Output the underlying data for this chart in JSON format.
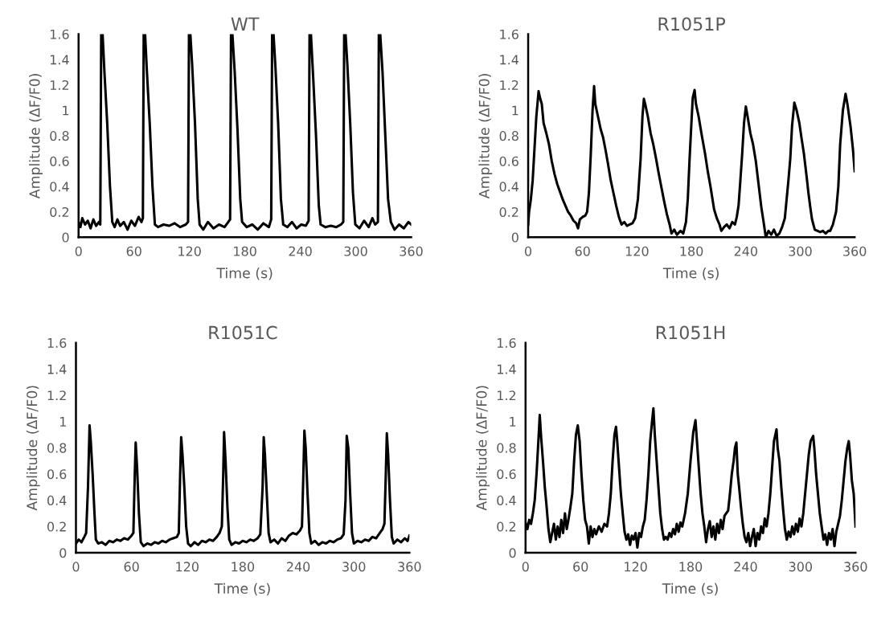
{
  "chart_data": [
    {
      "type": "line",
      "title": "WT",
      "xlabel": "Time (s)",
      "ylabel": "Amplitude (ΔF/F0)",
      "xlim": [
        0,
        360
      ],
      "xticks": [
        0,
        60,
        120,
        180,
        240,
        300,
        360
      ],
      "ylim": [
        0,
        1.6
      ],
      "yticks": [
        0,
        0.2,
        0.4,
        0.6,
        0.8,
        1,
        1.2,
        1.4,
        1.6
      ],
      "series": [
        {
          "color": "#000000",
          "x": [
            0,
            2,
            4,
            7,
            10,
            13,
            16,
            19,
            22,
            23.5,
            24.5,
            26,
            28,
            31,
            34,
            36.5,
            39,
            42,
            45,
            49,
            53,
            57,
            61,
            65,
            68,
            69.6,
            70.5,
            72,
            74,
            77,
            80,
            82.6,
            86,
            92,
            98,
            104,
            110,
            116,
            118.5,
            119.5,
            121,
            123,
            126,
            129,
            131,
            135,
            140,
            146,
            152,
            158,
            162,
            164,
            165,
            166.5,
            169,
            172,
            175,
            177,
            182,
            188,
            194,
            200,
            206,
            208.5,
            209.5,
            211,
            213,
            216,
            219,
            221.5,
            226,
            231,
            236,
            241,
            246,
            249,
            250,
            251.5,
            254,
            257,
            260,
            262,
            267,
            273,
            279,
            284,
            286.5,
            287.5,
            289,
            291,
            294,
            297,
            299.5,
            304,
            309,
            314,
            318,
            321,
            324,
            325,
            326.5,
            329,
            332,
            335,
            338,
            342,
            347,
            352,
            357,
            360
          ],
          "values": [
            0.12,
            0.08,
            0.15,
            0.1,
            0.13,
            0.07,
            0.14,
            0.09,
            0.12,
            0.1,
            1.6,
            1.6,
            1.3,
            0.9,
            0.4,
            0.12,
            0.08,
            0.14,
            0.09,
            0.12,
            0.06,
            0.13,
            0.09,
            0.16,
            0.12,
            0.15,
            1.6,
            1.6,
            1.3,
            0.9,
            0.4,
            0.1,
            0.08,
            0.1,
            0.09,
            0.11,
            0.08,
            0.1,
            0.12,
            1.6,
            1.6,
            1.35,
            0.9,
            0.3,
            0.1,
            0.06,
            0.12,
            0.07,
            0.1,
            0.08,
            0.12,
            0.14,
            1.6,
            1.6,
            1.3,
            0.85,
            0.3,
            0.12,
            0.08,
            0.1,
            0.06,
            0.11,
            0.08,
            0.14,
            1.6,
            1.6,
            1.35,
            0.9,
            0.3,
            0.1,
            0.08,
            0.12,
            0.07,
            0.1,
            0.09,
            0.13,
            1.6,
            1.6,
            1.25,
            0.8,
            0.25,
            0.1,
            0.08,
            0.09,
            0.08,
            0.1,
            0.12,
            1.6,
            1.6,
            1.35,
            0.9,
            0.35,
            0.1,
            0.07,
            0.13,
            0.08,
            0.15,
            0.1,
            0.12,
            1.6,
            1.6,
            1.3,
            0.8,
            0.3,
            0.12,
            0.06,
            0.1,
            0.07,
            0.12,
            0.1
          ]
        }
      ]
    },
    {
      "type": "line",
      "title": "R1051P",
      "xlabel": "Time (s)",
      "ylabel": "Amplitude (ΔF/F0)",
      "xlim": [
        0,
        360
      ],
      "xticks": [
        0,
        60,
        120,
        180,
        240,
        300,
        360
      ],
      "ylim": [
        0,
        1.6
      ],
      "yticks": [
        0,
        0.2,
        0.4,
        0.6,
        0.8,
        1,
        1.2,
        1.4,
        1.6
      ],
      "series": [
        {
          "color": "#000000",
          "x": [
            0,
            1,
            3,
            5,
            7,
            9,
            11.5,
            13,
            15,
            17,
            20,
            23,
            26,
            29,
            32,
            35.5,
            38,
            41,
            44,
            47,
            50,
            53,
            55,
            57,
            60,
            63,
            65,
            67,
            69,
            71,
            72.7,
            74,
            77,
            80,
            82.5,
            85,
            88,
            91,
            94,
            97,
            100,
            103,
            106,
            109,
            112,
            115,
            118,
            121,
            124,
            126,
            127.6,
            129,
            132,
            135,
            138,
            141,
            144,
            147,
            150,
            153,
            156,
            158,
            161,
            164,
            168,
            171,
            174,
            176,
            178,
            180,
            181.5,
            183.5,
            185,
            188,
            191,
            195,
            198,
            201,
            205,
            208,
            211,
            213,
            216,
            219,
            222,
            225,
            228,
            230,
            232,
            234,
            236,
            238,
            240,
            242,
            245,
            248,
            251,
            254,
            257,
            260,
            262,
            265,
            268,
            271,
            274,
            277,
            280,
            283,
            285,
            287,
            289,
            291,
            293.5,
            296,
            299,
            301,
            304,
            307,
            309,
            311,
            313,
            316,
            319,
            322,
            325,
            328,
            331,
            333,
            336,
            339.5,
            342,
            344,
            347,
            350,
            352,
            355.5,
            358,
            360
          ],
          "values": [
            0.1,
            0.2,
            0.3,
            0.45,
            0.7,
            0.95,
            1.15,
            1.1,
            1.05,
            0.9,
            0.82,
            0.73,
            0.6,
            0.5,
            0.42,
            0.35,
            0.3,
            0.25,
            0.2,
            0.17,
            0.13,
            0.11,
            0.07,
            0.14,
            0.16,
            0.17,
            0.2,
            0.35,
            0.65,
            1.0,
            1.19,
            1.05,
            0.95,
            0.85,
            0.79,
            0.7,
            0.58,
            0.45,
            0.35,
            0.25,
            0.16,
            0.1,
            0.12,
            0.09,
            0.1,
            0.11,
            0.15,
            0.3,
            0.62,
            0.95,
            1.09,
            1.05,
            0.95,
            0.82,
            0.73,
            0.62,
            0.5,
            0.39,
            0.28,
            0.18,
            0.1,
            0.03,
            0.06,
            0.02,
            0.05,
            0.03,
            0.12,
            0.3,
            0.62,
            0.9,
            1.1,
            1.16,
            1.05,
            0.95,
            0.82,
            0.66,
            0.52,
            0.4,
            0.22,
            0.15,
            0.1,
            0.05,
            0.08,
            0.1,
            0.07,
            0.12,
            0.1,
            0.16,
            0.25,
            0.45,
            0.66,
            0.9,
            1.03,
            0.95,
            0.82,
            0.73,
            0.6,
            0.42,
            0.24,
            0.1,
            0.0,
            0.05,
            0.02,
            0.06,
            0.01,
            0.03,
            0.08,
            0.15,
            0.3,
            0.45,
            0.62,
            0.88,
            1.06,
            1.0,
            0.9,
            0.8,
            0.66,
            0.48,
            0.35,
            0.24,
            0.14,
            0.06,
            0.05,
            0.04,
            0.05,
            0.03,
            0.05,
            0.05,
            0.1,
            0.2,
            0.4,
            0.73,
            1.0,
            1.13,
            1.05,
            0.87,
            0.7,
            0.52
          ]
        }
      ]
    },
    {
      "type": "line",
      "title": "R1051C",
      "xlabel": "Time (s)",
      "ylabel": "Amplitude (ΔF/F0)",
      "xlim": [
        0,
        360
      ],
      "xticks": [
        0,
        60,
        120,
        180,
        240,
        300,
        360
      ],
      "ylim": [
        0,
        1.6
      ],
      "yticks": [
        0,
        0.2,
        0.4,
        0.6,
        0.8,
        1,
        1.2,
        1.4,
        1.6
      ],
      "series": [
        {
          "color": "#000000",
          "x": [
            0,
            3,
            6,
            9,
            11,
            13,
            14.7,
            16,
            18,
            20,
            21.5,
            24,
            28,
            32,
            36,
            40,
            44,
            48,
            52,
            56,
            60,
            62,
            63.5,
            64.5,
            66,
            68,
            70,
            73,
            77,
            81,
            85,
            89,
            93,
            97,
            101,
            105,
            109,
            111,
            112.5,
            113.6,
            115,
            117,
            119,
            121,
            124,
            128,
            132,
            136,
            140,
            144,
            148,
            152,
            155,
            157.5,
            159,
            159.9,
            161.5,
            163.5,
            165.5,
            168,
            172,
            176,
            180,
            184,
            188,
            192,
            196,
            199,
            201.5,
            202.7,
            204,
            206,
            208,
            210,
            214,
            218,
            222,
            226,
            230,
            234,
            238,
            242,
            244,
            245.5,
            246.6,
            248,
            250,
            252,
            254,
            258,
            262,
            266,
            270,
            274,
            278,
            282,
            286,
            289,
            291,
            292.3,
            294,
            296,
            298,
            300,
            304,
            308,
            312,
            316,
            320,
            324,
            328,
            331,
            333,
            334.5,
            335.6,
            337,
            339,
            341,
            343,
            347,
            351,
            355,
            358,
            360
          ],
          "values": [
            0.07,
            0.1,
            0.08,
            0.12,
            0.15,
            0.5,
            0.97,
            0.85,
            0.6,
            0.3,
            0.1,
            0.07,
            0.08,
            0.06,
            0.09,
            0.08,
            0.1,
            0.09,
            0.11,
            0.1,
            0.13,
            0.15,
            0.6,
            0.84,
            0.65,
            0.3,
            0.08,
            0.05,
            0.07,
            0.06,
            0.08,
            0.07,
            0.09,
            0.08,
            0.1,
            0.11,
            0.12,
            0.15,
            0.6,
            0.88,
            0.75,
            0.5,
            0.2,
            0.07,
            0.05,
            0.08,
            0.06,
            0.09,
            0.08,
            0.1,
            0.09,
            0.12,
            0.15,
            0.2,
            0.6,
            0.92,
            0.7,
            0.35,
            0.1,
            0.06,
            0.08,
            0.07,
            0.09,
            0.08,
            0.1,
            0.09,
            0.11,
            0.14,
            0.5,
            0.88,
            0.75,
            0.45,
            0.15,
            0.08,
            0.1,
            0.07,
            0.11,
            0.09,
            0.13,
            0.15,
            0.14,
            0.17,
            0.2,
            0.6,
            0.93,
            0.8,
            0.45,
            0.15,
            0.07,
            0.09,
            0.06,
            0.08,
            0.07,
            0.09,
            0.08,
            0.1,
            0.11,
            0.14,
            0.4,
            0.89,
            0.8,
            0.45,
            0.15,
            0.07,
            0.09,
            0.08,
            0.1,
            0.09,
            0.12,
            0.11,
            0.15,
            0.18,
            0.22,
            0.6,
            0.91,
            0.75,
            0.4,
            0.12,
            0.07,
            0.1,
            0.08,
            0.11,
            0.09,
            0.13
          ]
        }
      ]
    },
    {
      "type": "line",
      "title": "R1051H",
      "xlabel": "Time (s)",
      "ylabel": "Amplitude (ΔF/F0)",
      "xlim": [
        0,
        360
      ],
      "xticks": [
        0,
        60,
        120,
        180,
        240,
        300,
        360
      ],
      "ylim": [
        0,
        1.6
      ],
      "yticks": [
        0,
        0.2,
        0.4,
        0.6,
        0.8,
        1,
        1.2,
        1.4,
        1.6
      ],
      "series": [
        {
          "color": "#000000",
          "x": [
            0,
            2,
            4,
            6,
            8,
            10,
            12,
            14,
            15.5,
            17,
            19,
            21,
            23,
            25,
            27,
            29,
            31,
            33,
            35,
            37,
            39,
            41,
            43,
            45,
            47,
            49,
            51,
            53,
            55,
            57,
            59,
            61,
            63,
            65,
            67,
            69,
            71,
            73,
            75,
            77,
            80,
            83,
            86,
            89,
            91,
            93,
            95,
            97,
            98.7,
            100,
            102,
            104,
            106,
            108,
            110,
            112,
            114,
            116,
            118,
            120,
            122,
            124,
            126,
            128,
            130,
            132,
            134,
            136,
            138,
            139.5,
            141,
            143,
            145,
            147,
            149,
            151,
            153,
            155,
            157,
            159,
            161,
            163,
            165,
            167,
            169,
            171,
            174,
            177,
            180,
            183,
            185.4,
            187,
            189,
            191,
            193,
            195,
            197,
            199,
            201,
            203,
            205,
            207,
            209,
            211,
            213,
            215,
            217,
            219,
            221,
            223,
            225,
            227,
            228.5,
            230,
            231.5,
            233,
            235,
            237,
            239,
            241,
            243,
            245,
            247,
            249,
            251,
            253,
            255,
            257,
            259,
            261,
            263,
            265,
            267,
            269,
            271,
            273.8,
            275,
            277,
            279,
            281,
            283,
            285,
            287,
            289,
            291,
            293,
            295,
            297,
            299,
            301,
            303,
            305,
            307,
            309,
            311,
            313.8,
            315,
            317,
            319,
            321,
            323,
            325,
            327,
            329,
            331,
            333,
            335,
            337,
            339,
            341,
            343,
            345,
            347,
            349,
            351,
            352.6,
            354,
            356,
            358,
            360
          ],
          "values": [
            0.23,
            0.18,
            0.25,
            0.22,
            0.3,
            0.4,
            0.6,
            0.85,
            1.05,
            0.88,
            0.7,
            0.5,
            0.35,
            0.18,
            0.08,
            0.15,
            0.22,
            0.1,
            0.2,
            0.12,
            0.25,
            0.15,
            0.3,
            0.18,
            0.26,
            0.35,
            0.45,
            0.7,
            0.9,
            0.97,
            0.85,
            0.6,
            0.4,
            0.25,
            0.2,
            0.07,
            0.2,
            0.12,
            0.18,
            0.14,
            0.2,
            0.16,
            0.22,
            0.2,
            0.3,
            0.45,
            0.7,
            0.9,
            0.96,
            0.85,
            0.65,
            0.45,
            0.3,
            0.16,
            0.1,
            0.14,
            0.06,
            0.13,
            0.1,
            0.15,
            0.04,
            0.15,
            0.12,
            0.2,
            0.25,
            0.4,
            0.6,
            0.85,
            1.0,
            1.1,
            0.9,
            0.7,
            0.5,
            0.3,
            0.18,
            0.1,
            0.12,
            0.1,
            0.15,
            0.12,
            0.18,
            0.14,
            0.22,
            0.16,
            0.23,
            0.2,
            0.3,
            0.45,
            0.7,
            0.92,
            1.01,
            0.85,
            0.65,
            0.45,
            0.3,
            0.2,
            0.08,
            0.18,
            0.24,
            0.12,
            0.2,
            0.1,
            0.22,
            0.15,
            0.25,
            0.18,
            0.28,
            0.3,
            0.32,
            0.45,
            0.6,
            0.7,
            0.8,
            0.84,
            0.6,
            0.5,
            0.35,
            0.22,
            0.12,
            0.08,
            0.15,
            0.05,
            0.12,
            0.18,
            0.05,
            0.15,
            0.1,
            0.2,
            0.15,
            0.26,
            0.2,
            0.3,
            0.45,
            0.65,
            0.85,
            0.94,
            0.8,
            0.7,
            0.5,
            0.33,
            0.18,
            0.1,
            0.16,
            0.12,
            0.2,
            0.14,
            0.22,
            0.16,
            0.26,
            0.2,
            0.3,
            0.45,
            0.6,
            0.75,
            0.85,
            0.89,
            0.8,
            0.6,
            0.45,
            0.3,
            0.2,
            0.1,
            0.14,
            0.06,
            0.15,
            0.1,
            0.18,
            0.05,
            0.16,
            0.22,
            0.28,
            0.4,
            0.55,
            0.7,
            0.8,
            0.85,
            0.75,
            0.55,
            0.45,
            0.2
          ]
        }
      ]
    }
  ]
}
